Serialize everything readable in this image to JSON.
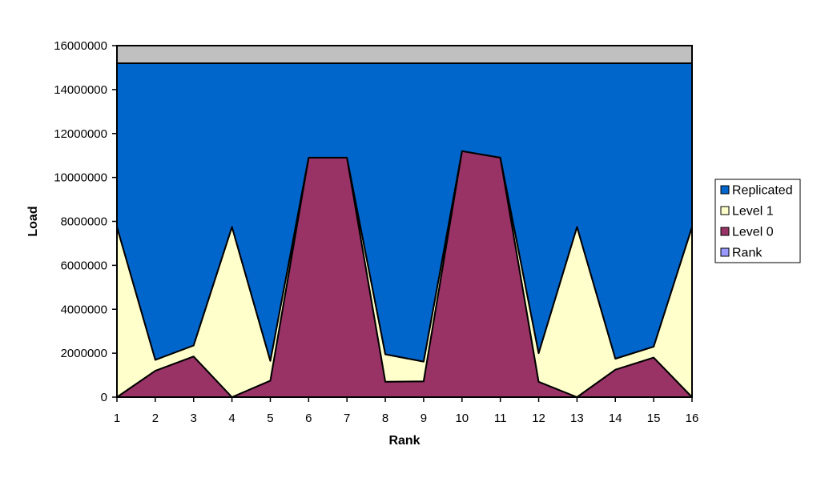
{
  "chart_data": {
    "type": "area",
    "stacked": true,
    "title": "",
    "xlabel": "Rank",
    "ylabel": "Load",
    "x": [
      1,
      2,
      3,
      4,
      5,
      6,
      7,
      8,
      9,
      10,
      11,
      12,
      13,
      14,
      15,
      16
    ],
    "ylim": [
      0,
      16000000
    ],
    "yticks": [
      0,
      2000000,
      4000000,
      6000000,
      8000000,
      10000000,
      12000000,
      14000000,
      16000000
    ],
    "grid": false,
    "legend_position": "right",
    "series": [
      {
        "name": "Level 0",
        "color": "#993366",
        "values": [
          0,
          1200000,
          1850000,
          0,
          750000,
          10900000,
          10900000,
          700000,
          720000,
          11200000,
          10900000,
          700000,
          0,
          1250000,
          1800000,
          0
        ]
      },
      {
        "name": "Level 1",
        "color": "#FFFFCC",
        "values": [
          7750000,
          500000,
          500000,
          7750000,
          900000,
          0,
          0,
          1250000,
          900000,
          0,
          0,
          1300000,
          7750000,
          500000,
          500000,
          7750000
        ]
      },
      {
        "name": "Replicated",
        "color": "#0066CC",
        "values": [
          7450000,
          13500000,
          12850000,
          7450000,
          13550000,
          4300000,
          4300000,
          13250000,
          13580000,
          4000000,
          4300000,
          13200000,
          7450000,
          13450000,
          12900000,
          7450000
        ]
      },
      {
        "name": "",
        "color": "#C0C0C0",
        "values": [
          800000,
          800000,
          800000,
          800000,
          800000,
          800000,
          800000,
          800000,
          800000,
          800000,
          800000,
          800000,
          800000,
          800000,
          800000,
          800000
        ]
      }
    ],
    "legend": [
      {
        "label": "Replicated",
        "color": "#0066CC"
      },
      {
        "label": "Level 1",
        "color": "#FFFFCC"
      },
      {
        "label": "Level 0",
        "color": "#993366"
      },
      {
        "label": "Rank",
        "color": "#9999FF"
      }
    ]
  }
}
